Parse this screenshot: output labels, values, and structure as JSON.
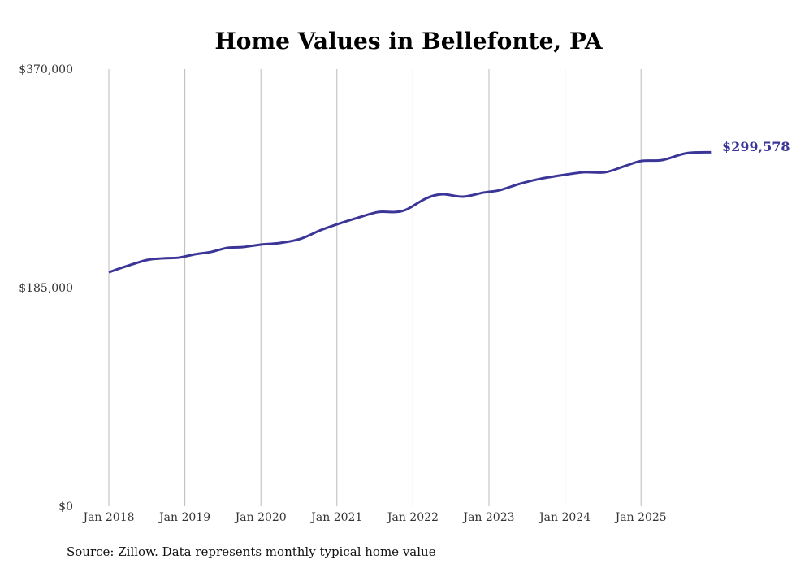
{
  "chart_data": {
    "type": "line",
    "title": "Home Values in Bellefonte, PA",
    "xlabel": "",
    "ylabel": "",
    "ylim": [
      0,
      370000
    ],
    "yticks": [
      {
        "value": 0,
        "label": "$0"
      },
      {
        "value": 185000,
        "label": "$185,000"
      },
      {
        "value": 370000,
        "label": "$370,000"
      }
    ],
    "xticks": [
      {
        "value": 2018,
        "label": "Jan 2018"
      },
      {
        "value": 2019,
        "label": "Jan 2019"
      },
      {
        "value": 2020,
        "label": "Jan 2020"
      },
      {
        "value": 2021,
        "label": "Jan 2021"
      },
      {
        "value": 2022,
        "label": "Jan 2022"
      },
      {
        "value": 2023,
        "label": "Jan 2023"
      },
      {
        "value": 2024,
        "label": "Jan 2024"
      },
      {
        "value": 2025,
        "label": "Jan 2025"
      }
    ],
    "xlim": [
      2018,
      2026
    ],
    "grid": "vertical",
    "series": [
      {
        "name": "Typical home value",
        "color": "#3b3598",
        "x": [
          2018.0,
          2018.22,
          2018.5,
          2018.71,
          2018.92,
          2019.13,
          2019.35,
          2019.56,
          2019.77,
          2019.99,
          2020.25,
          2020.52,
          2020.79,
          2021.0,
          2021.27,
          2021.54,
          2021.75,
          2021.91,
          2022.18,
          2022.39,
          2022.66,
          2022.93,
          2023.14,
          2023.41,
          2023.68,
          2024.0,
          2024.26,
          2024.53,
          2024.8,
          2025.01,
          2025.28,
          2025.6,
          2025.92
        ],
        "values": [
          198000,
          202900,
          208400,
          209800,
          210400,
          213200,
          215300,
          218700,
          219400,
          221400,
          222800,
          226300,
          233800,
          238600,
          244100,
          249000,
          249000,
          251000,
          260700,
          264100,
          262000,
          265500,
          267500,
          273000,
          277200,
          280600,
          282700,
          282700,
          288200,
          292300,
          293000,
          298800,
          299578
        ]
      }
    ],
    "end_label": "$299,578",
    "source": "Source: Zillow. Data represents monthly typical home value"
  }
}
